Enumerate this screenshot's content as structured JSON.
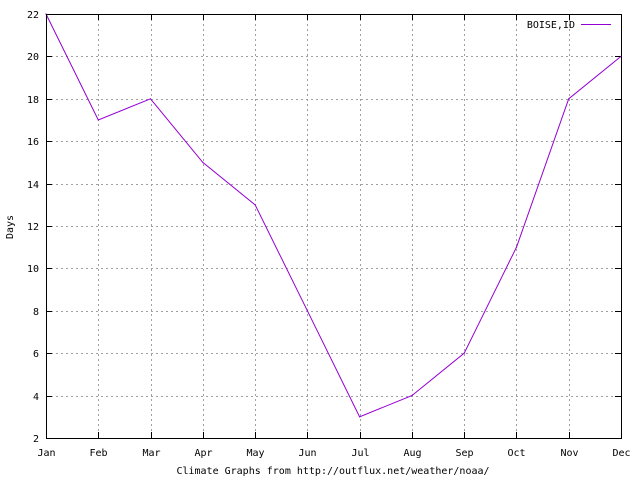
{
  "chart_data": {
    "type": "line",
    "title": "",
    "xlabel": "Climate Graphs from http://outflux.net/weather/noaa/",
    "ylabel": "Days",
    "categories": [
      "Jan",
      "Feb",
      "Mar",
      "Apr",
      "May",
      "Jun",
      "Jul",
      "Aug",
      "Sep",
      "Oct",
      "Nov",
      "Dec"
    ],
    "ylim": [
      2,
      22
    ],
    "yticks": [
      "2",
      "4",
      "6",
      "8",
      "10",
      "12",
      "14",
      "16",
      "18",
      "20",
      "22"
    ],
    "grid": true,
    "legend_position": "top-right",
    "series": [
      {
        "name": "BOISE,ID",
        "color": "#9400d3",
        "values": [
          22,
          17,
          18,
          15,
          13,
          8,
          3,
          4,
          6,
          11,
          18,
          20
        ]
      }
    ]
  }
}
